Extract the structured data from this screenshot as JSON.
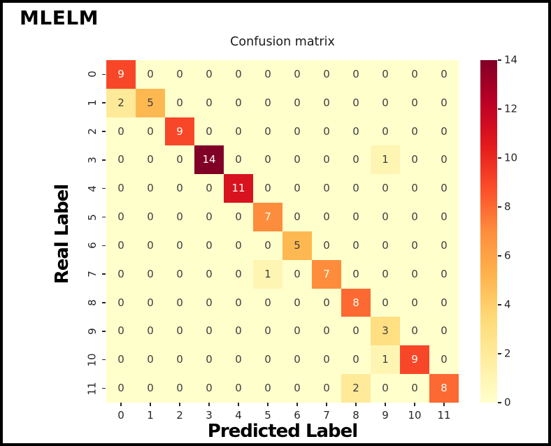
{
  "panel_label": "MLELM",
  "chart_data": {
    "type": "heatmap",
    "title": "Confusion matrix",
    "xlabel": "Predicted Label",
    "ylabel": "Real Label",
    "x_tick_labels": [
      "0",
      "1",
      "2",
      "3",
      "4",
      "5",
      "6",
      "7",
      "8",
      "9",
      "10",
      "11"
    ],
    "y_tick_labels": [
      "0",
      "1",
      "2",
      "3",
      "4",
      "5",
      "6",
      "7",
      "8",
      "9",
      "10",
      "11"
    ],
    "matrix": [
      [
        9,
        0,
        0,
        0,
        0,
        0,
        0,
        0,
        0,
        0,
        0,
        0
      ],
      [
        2,
        5,
        0,
        0,
        0,
        0,
        0,
        0,
        0,
        0,
        0,
        0
      ],
      [
        0,
        0,
        9,
        0,
        0,
        0,
        0,
        0,
        0,
        0,
        0,
        0
      ],
      [
        0,
        0,
        0,
        14,
        0,
        0,
        0,
        0,
        0,
        1,
        0,
        0
      ],
      [
        0,
        0,
        0,
        0,
        11,
        0,
        0,
        0,
        0,
        0,
        0,
        0
      ],
      [
        0,
        0,
        0,
        0,
        0,
        7,
        0,
        0,
        0,
        0,
        0,
        0
      ],
      [
        0,
        0,
        0,
        0,
        0,
        0,
        5,
        0,
        0,
        0,
        0,
        0
      ],
      [
        0,
        0,
        0,
        0,
        0,
        1,
        0,
        7,
        0,
        0,
        0,
        0
      ],
      [
        0,
        0,
        0,
        0,
        0,
        0,
        0,
        0,
        8,
        0,
        0,
        0
      ],
      [
        0,
        0,
        0,
        0,
        0,
        0,
        0,
        0,
        0,
        3,
        0,
        0
      ],
      [
        0,
        0,
        0,
        0,
        0,
        0,
        0,
        0,
        0,
        1,
        9,
        0
      ],
      [
        0,
        0,
        0,
        0,
        0,
        0,
        0,
        0,
        2,
        0,
        0,
        8
      ]
    ],
    "vmin": 0,
    "vmax": 14,
    "colorbar_ticks": [
      0,
      2,
      4,
      6,
      8,
      10,
      12,
      14
    ],
    "colorbar_position": "right",
    "grid": false,
    "colormap_name": "YlOrRd",
    "colormap_anchors": [
      {
        "pos": 0.0,
        "color": "#ffffcc"
      },
      {
        "pos": 0.125,
        "color": "#ffeda0"
      },
      {
        "pos": 0.25,
        "color": "#fed976"
      },
      {
        "pos": 0.375,
        "color": "#feb24c"
      },
      {
        "pos": 0.5,
        "color": "#fd8d3c"
      },
      {
        "pos": 0.625,
        "color": "#fc4e2a"
      },
      {
        "pos": 0.75,
        "color": "#e31a1c"
      },
      {
        "pos": 0.875,
        "color": "#bd0026"
      },
      {
        "pos": 1.0,
        "color": "#800026"
      }
    ],
    "cell_text_dark": "#3d3d3d",
    "cell_text_light": "#fffef2",
    "text_threshold": 7,
    "tick_color": "#262626"
  }
}
